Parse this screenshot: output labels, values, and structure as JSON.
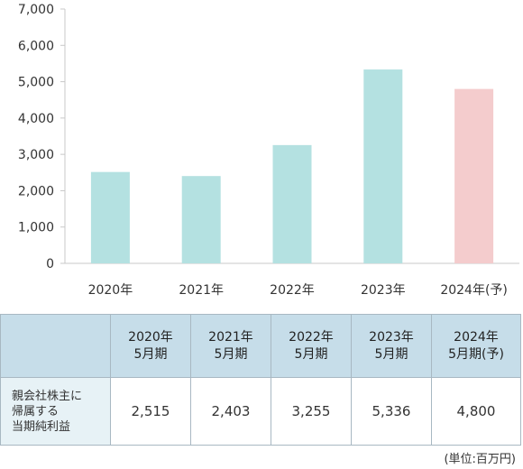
{
  "chart_data": {
    "type": "bar",
    "categories": [
      "2020年",
      "2021年",
      "2022年",
      "2023年",
      "2024年(予)"
    ],
    "values": [
      2515,
      2403,
      3255,
      5336,
      4800
    ],
    "bar_colors": [
      "#b4e1e1",
      "#b4e1e1",
      "#b4e1e1",
      "#b4e1e1",
      "#f4cccd"
    ],
    "ylim": [
      0,
      7000
    ],
    "yticks": [
      0,
      1000,
      2000,
      3000,
      4000,
      5000,
      6000,
      7000
    ],
    "ytick_labels": [
      "0",
      "1,000",
      "2,000",
      "3,000",
      "4,000",
      "5,000",
      "6,000",
      "7,000"
    ],
    "grid": false
  },
  "table": {
    "columns": [
      [
        "2020年",
        "5月期"
      ],
      [
        "2021年",
        "5月期"
      ],
      [
        "2022年",
        "5月期"
      ],
      [
        "2023年",
        "5月期"
      ],
      [
        "2024年",
        "5月期(予)"
      ]
    ],
    "row_label": "親会社株主に\n帰属する\n当期純利益",
    "row_values": [
      "2,515",
      "2,403",
      "3,255",
      "5,336",
      "4,800"
    ]
  },
  "unit_note": "(単位:百万円)"
}
